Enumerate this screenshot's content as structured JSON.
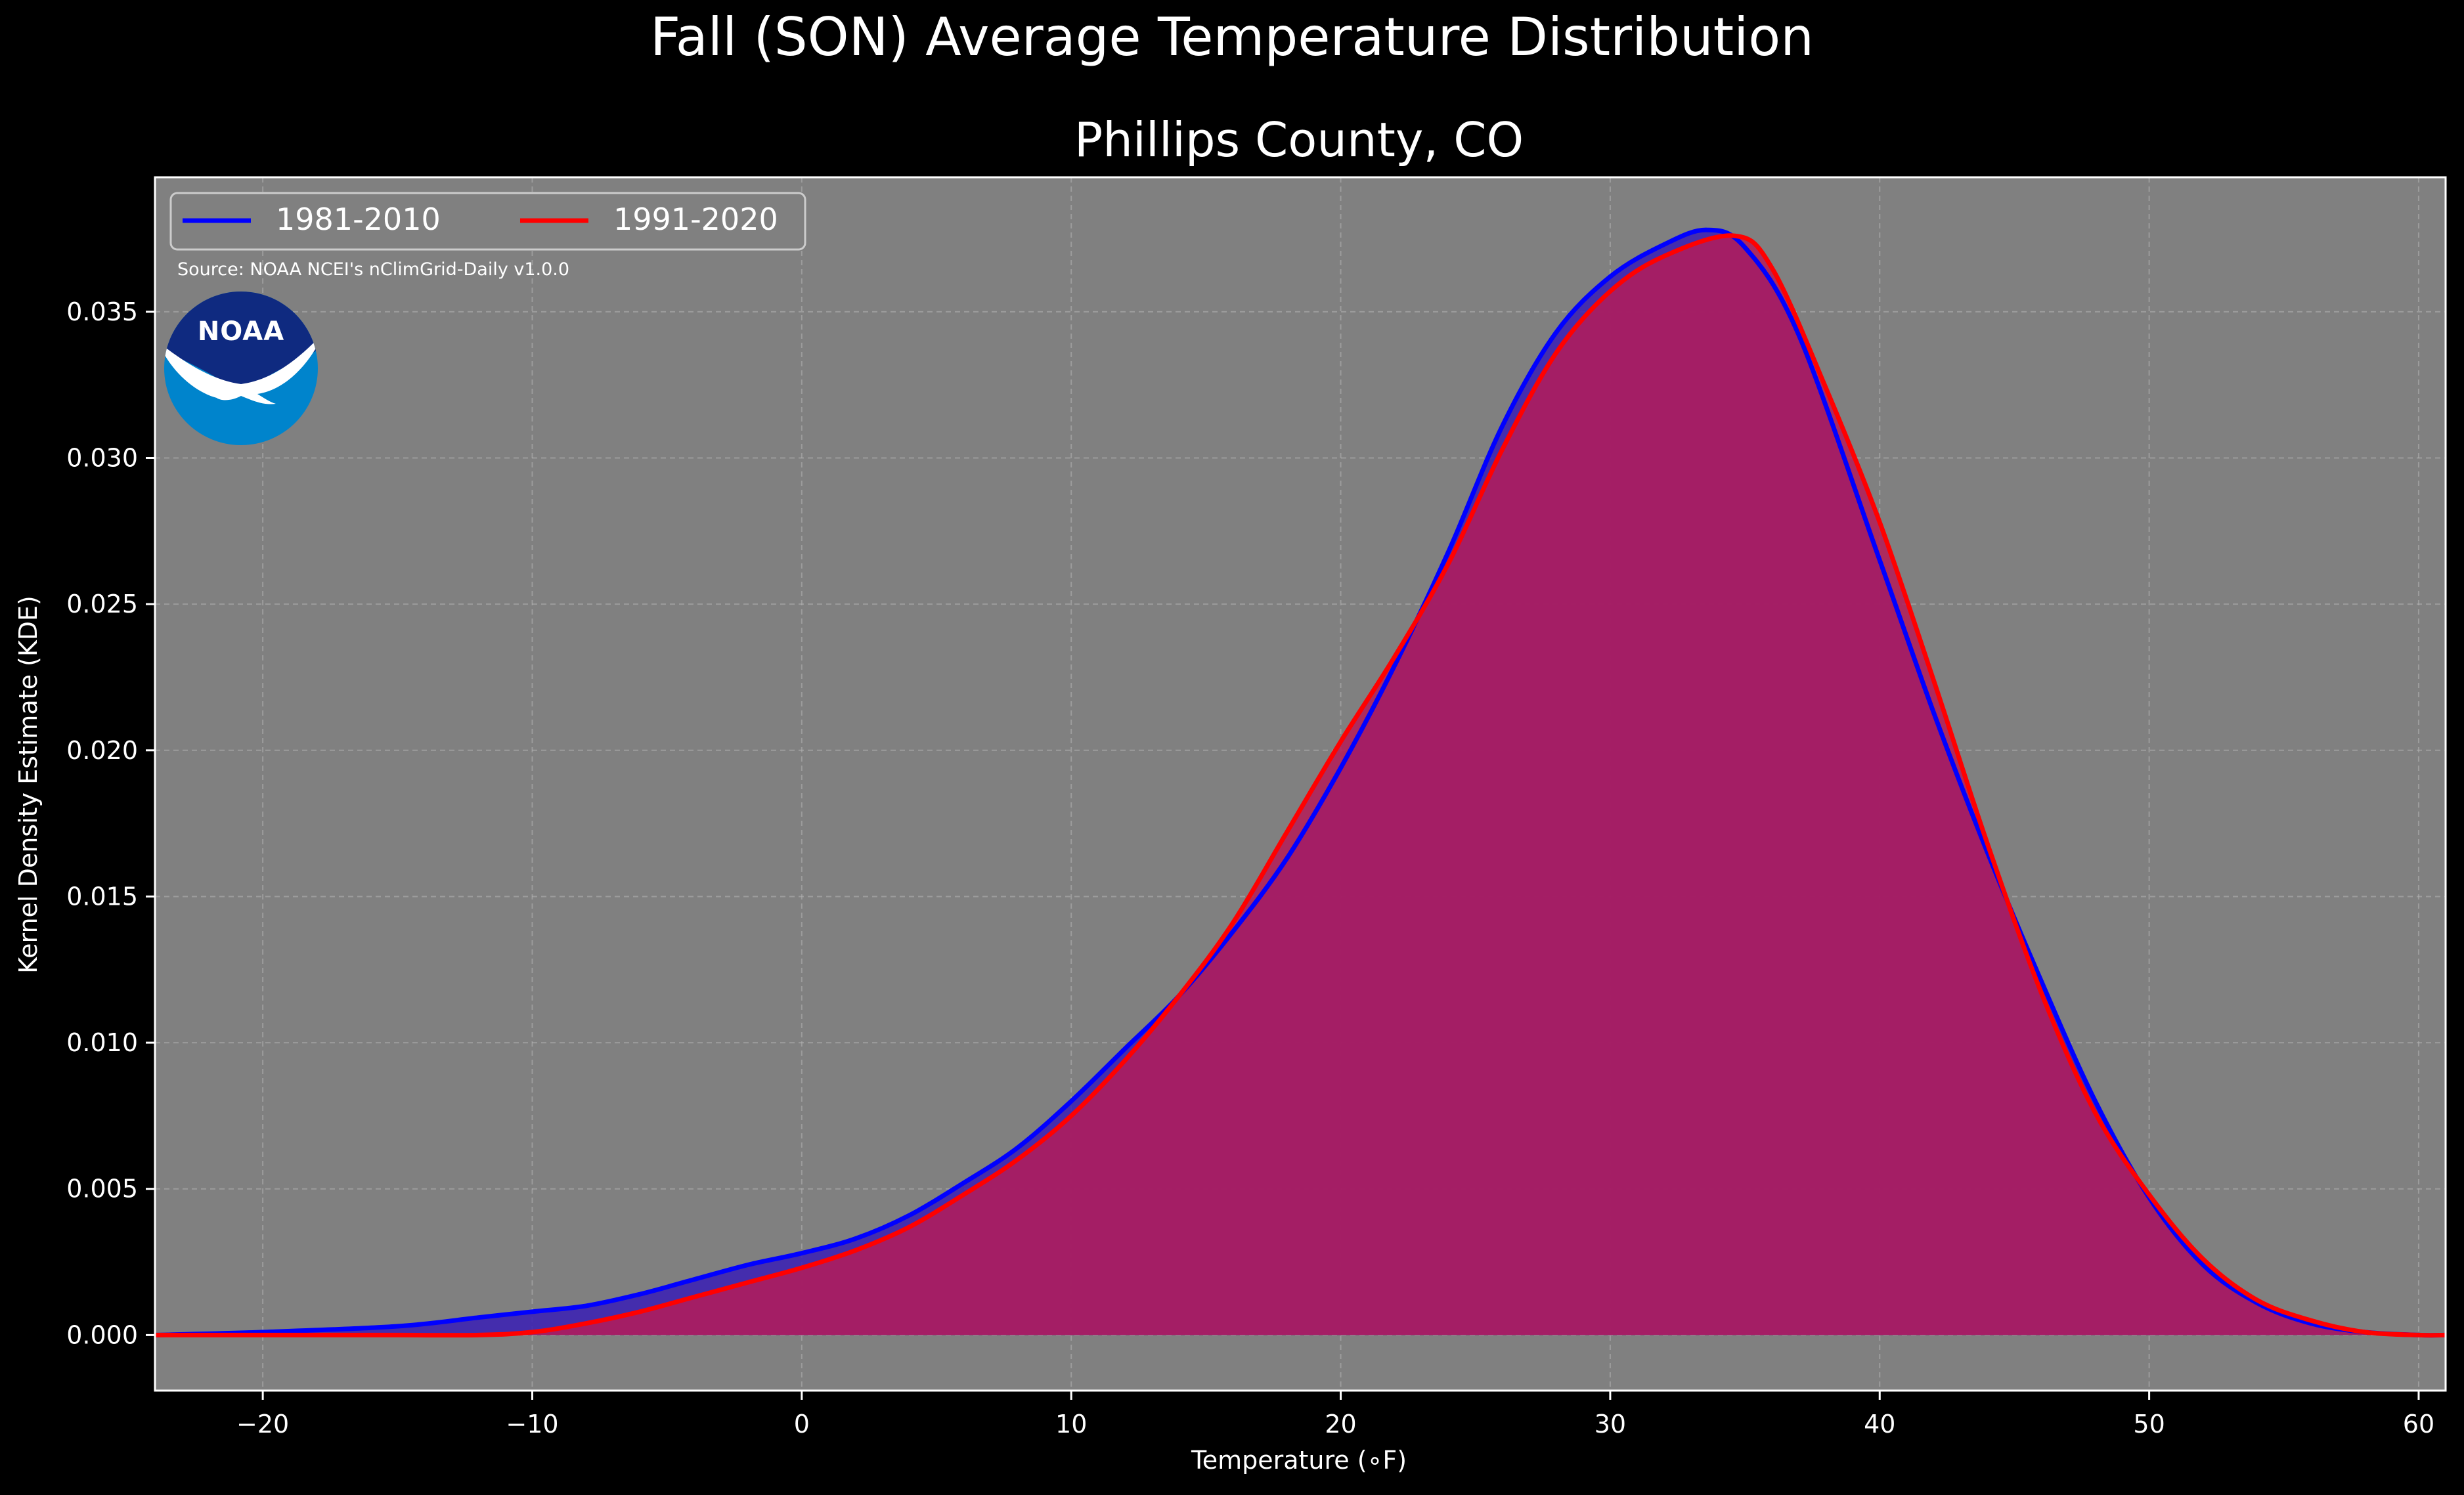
{
  "chart_data": {
    "type": "area",
    "suptitle": "Fall (SON) Average Temperature Distribution",
    "title": "Phillips County, CO",
    "xlabel": "Temperature ($^\\circ$F)",
    "xlabel_display": "Temperature (∘F)",
    "ylabel": "Kernel Density Estimate (KDE)",
    "source_note": "Source: NOAA NCEI's nClimGrid-Daily v1.0.0",
    "logo_text": "NOAA",
    "xlim": [
      -24,
      61
    ],
    "ylim": [
      -0.0019,
      0.0396
    ],
    "xticks": [
      -20,
      -10,
      0,
      10,
      20,
      30,
      40,
      50,
      60
    ],
    "xtick_labels": [
      "−20",
      "−10",
      "0",
      "10",
      "20",
      "30",
      "40",
      "50",
      "60"
    ],
    "yticks": [
      0,
      0.005,
      0.01,
      0.015,
      0.02,
      0.025,
      0.03,
      0.035
    ],
    "ytick_labels": [
      "0.000",
      "0.005",
      "0.010",
      "0.015",
      "0.020",
      "0.025",
      "0.030",
      "0.035"
    ],
    "grid": true,
    "legend_placement": "upper-left",
    "colors": {
      "background": "#000000",
      "plot_bg": "#808080",
      "grid": "#b0b0b0",
      "text": "#ffffff",
      "noaa_dark": "#0f2a80",
      "noaa_light": "#0084cc"
    },
    "series": [
      {
        "name": "1981-2010",
        "color": "#0000ff",
        "fill": "#3a1fb5",
        "x": [
          -24,
          -20,
          -15,
          -12,
          -10,
          -8,
          -6,
          -4,
          -2,
          0,
          2,
          4,
          6,
          8,
          10,
          12,
          14,
          16,
          18,
          20,
          22,
          24,
          26,
          28,
          30,
          32,
          33.6,
          35,
          37,
          40,
          42,
          44,
          46,
          48,
          50,
          52,
          54,
          56,
          58,
          60,
          61
        ],
        "y": [
          0.0,
          0.0001,
          0.0003,
          0.0006,
          0.0008,
          0.001,
          0.0014,
          0.0019,
          0.0024,
          0.0028,
          0.0033,
          0.0041,
          0.0052,
          0.0064,
          0.008,
          0.0098,
          0.0116,
          0.0138,
          0.0163,
          0.0194,
          0.0229,
          0.0268,
          0.0311,
          0.0343,
          0.0362,
          0.0373,
          0.0378,
          0.0372,
          0.0342,
          0.0265,
          0.0213,
          0.0165,
          0.0121,
          0.008,
          0.0047,
          0.0024,
          0.0011,
          0.0004,
          0.0001,
          0.0,
          0.0
        ]
      },
      {
        "name": "1991-2020",
        "color": "#ff0000",
        "fill": "#b51c58",
        "x": [
          -24,
          -20,
          -15,
          -12,
          -10,
          -8,
          -6,
          -4,
          -2,
          0,
          2,
          4,
          6,
          8,
          10,
          12,
          14,
          16,
          18,
          20,
          22,
          24,
          26,
          28,
          30,
          32,
          34.6,
          36,
          38,
          40,
          42,
          44,
          46,
          48,
          50,
          52,
          54,
          56,
          58,
          60,
          61
        ],
        "y": [
          0.0,
          0.0,
          0.0,
          0.0,
          0.0001,
          0.0004,
          0.0008,
          0.0013,
          0.0018,
          0.0023,
          0.0029,
          0.0037,
          0.0048,
          0.006,
          0.0075,
          0.0094,
          0.0116,
          0.0141,
          0.0172,
          0.0203,
          0.0232,
          0.0264,
          0.0303,
          0.0336,
          0.0357,
          0.0369,
          0.0376,
          0.0365,
          0.0324,
          0.0278,
          0.0224,
          0.0168,
          0.0117,
          0.0076,
          0.0048,
          0.0026,
          0.0012,
          0.0005,
          0.0001,
          0.0,
          0.0
        ]
      }
    ]
  }
}
